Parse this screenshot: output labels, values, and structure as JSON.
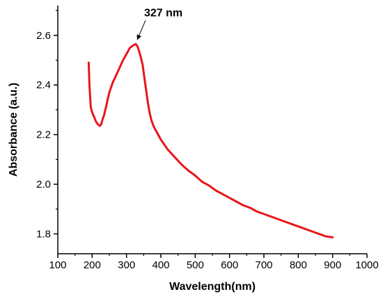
{
  "chart_data": {
    "type": "line",
    "title": "",
    "xlabel": "Wavelength(nm)",
    "ylabel": "Absorbance (a.u.)",
    "xlim": [
      100,
      1000
    ],
    "ylim": [
      1.72,
      2.72
    ],
    "x_ticks": [
      100,
      200,
      300,
      400,
      500,
      600,
      700,
      800,
      900,
      1000
    ],
    "y_ticks": [
      1.8,
      2.0,
      2.2,
      2.4,
      2.6
    ],
    "x_tick_labels": [
      "100",
      "200",
      "300",
      "400",
      "500",
      "600",
      "700",
      "800",
      "900",
      "1000"
    ],
    "y_tick_labels": [
      "1.8",
      "2.0",
      "2.2",
      "2.4",
      "2.6"
    ],
    "grid": false,
    "legend": "none",
    "series_color": "#e8161b",
    "series": [
      {
        "x": [
          190,
          192,
          196,
          200,
          206,
          212,
          218,
          222,
          226,
          230,
          235,
          240,
          245,
          250,
          260,
          270,
          280,
          290,
          300,
          310,
          315,
          320,
          327,
          332,
          337,
          342,
          347,
          352,
          357,
          362,
          367,
          372,
          377,
          382,
          390,
          400,
          420,
          440,
          460,
          480,
          500,
          520,
          540,
          560,
          580,
          600,
          620,
          640,
          660,
          680,
          700,
          720,
          740,
          760,
          780,
          800,
          820,
          840,
          860,
          870,
          880,
          890,
          900
        ],
        "y": [
          2.49,
          2.4,
          2.31,
          2.29,
          2.27,
          2.25,
          2.24,
          2.235,
          2.24,
          2.26,
          2.28,
          2.31,
          2.34,
          2.37,
          2.41,
          2.44,
          2.47,
          2.5,
          2.525,
          2.55,
          2.555,
          2.56,
          2.565,
          2.555,
          2.535,
          2.51,
          2.48,
          2.43,
          2.38,
          2.33,
          2.29,
          2.26,
          2.24,
          2.225,
          2.205,
          2.18,
          2.14,
          2.11,
          2.08,
          2.055,
          2.035,
          2.01,
          1.995,
          1.975,
          1.96,
          1.945,
          1.93,
          1.915,
          1.905,
          1.89,
          1.88,
          1.87,
          1.86,
          1.85,
          1.84,
          1.83,
          1.82,
          1.81,
          1.8,
          1.795,
          1.79,
          1.788,
          1.786
        ]
      }
    ],
    "annotations": [
      {
        "text": "327 nm",
        "x": 327,
        "y": 2.565
      }
    ]
  }
}
